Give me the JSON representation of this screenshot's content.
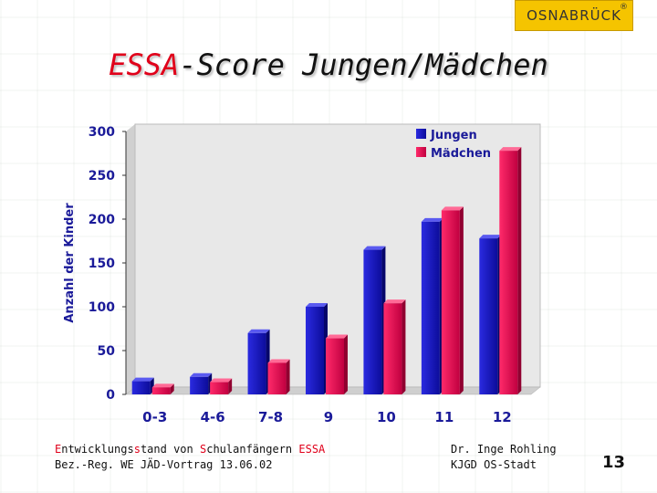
{
  "logo": {
    "text": "OSNABRÜCK",
    "reg": "®"
  },
  "title": {
    "part1": "ESSA",
    "part2": "-Score Jungen/Mädchen"
  },
  "footer": {
    "line1": {
      "a1": "E",
      "a2": "ntwicklungs",
      "a3": "s",
      "a4": "tand von ",
      "a5": "S",
      "a6": "chulanfängern ",
      "a7": "ESSA"
    },
    "line2": "Bez.-Reg. WE JÄD-Vortrag 13.06.02",
    "author1": "Dr. Inge Rohling",
    "author2": "KJGD OS-Stadt"
  },
  "page_number": "13",
  "colors": {
    "jungen": "#1414c8",
    "maedchen": "#f0145a",
    "axis_text": "#1a1a99",
    "plot_wall": "#e6e6e6"
  },
  "chart_data": {
    "type": "bar",
    "title": "ESSA-Score Jungen/Mädchen",
    "xlabel": "",
    "ylabel": "Anzahl der Kinder",
    "ylim": [
      0,
      300
    ],
    "yticks": [
      0,
      50,
      100,
      150,
      200,
      250,
      300
    ],
    "categories": [
      "0-3",
      "4-6",
      "7-8",
      "9",
      "10",
      "11",
      "12"
    ],
    "series": [
      {
        "name": "Jungen",
        "values": [
          15,
          20,
          70,
          100,
          165,
          197,
          178
        ]
      },
      {
        "name": "Mädchen",
        "values": [
          8,
          14,
          36,
          64,
          104,
          210,
          278
        ]
      }
    ],
    "legend": "top-right",
    "grid": false
  }
}
